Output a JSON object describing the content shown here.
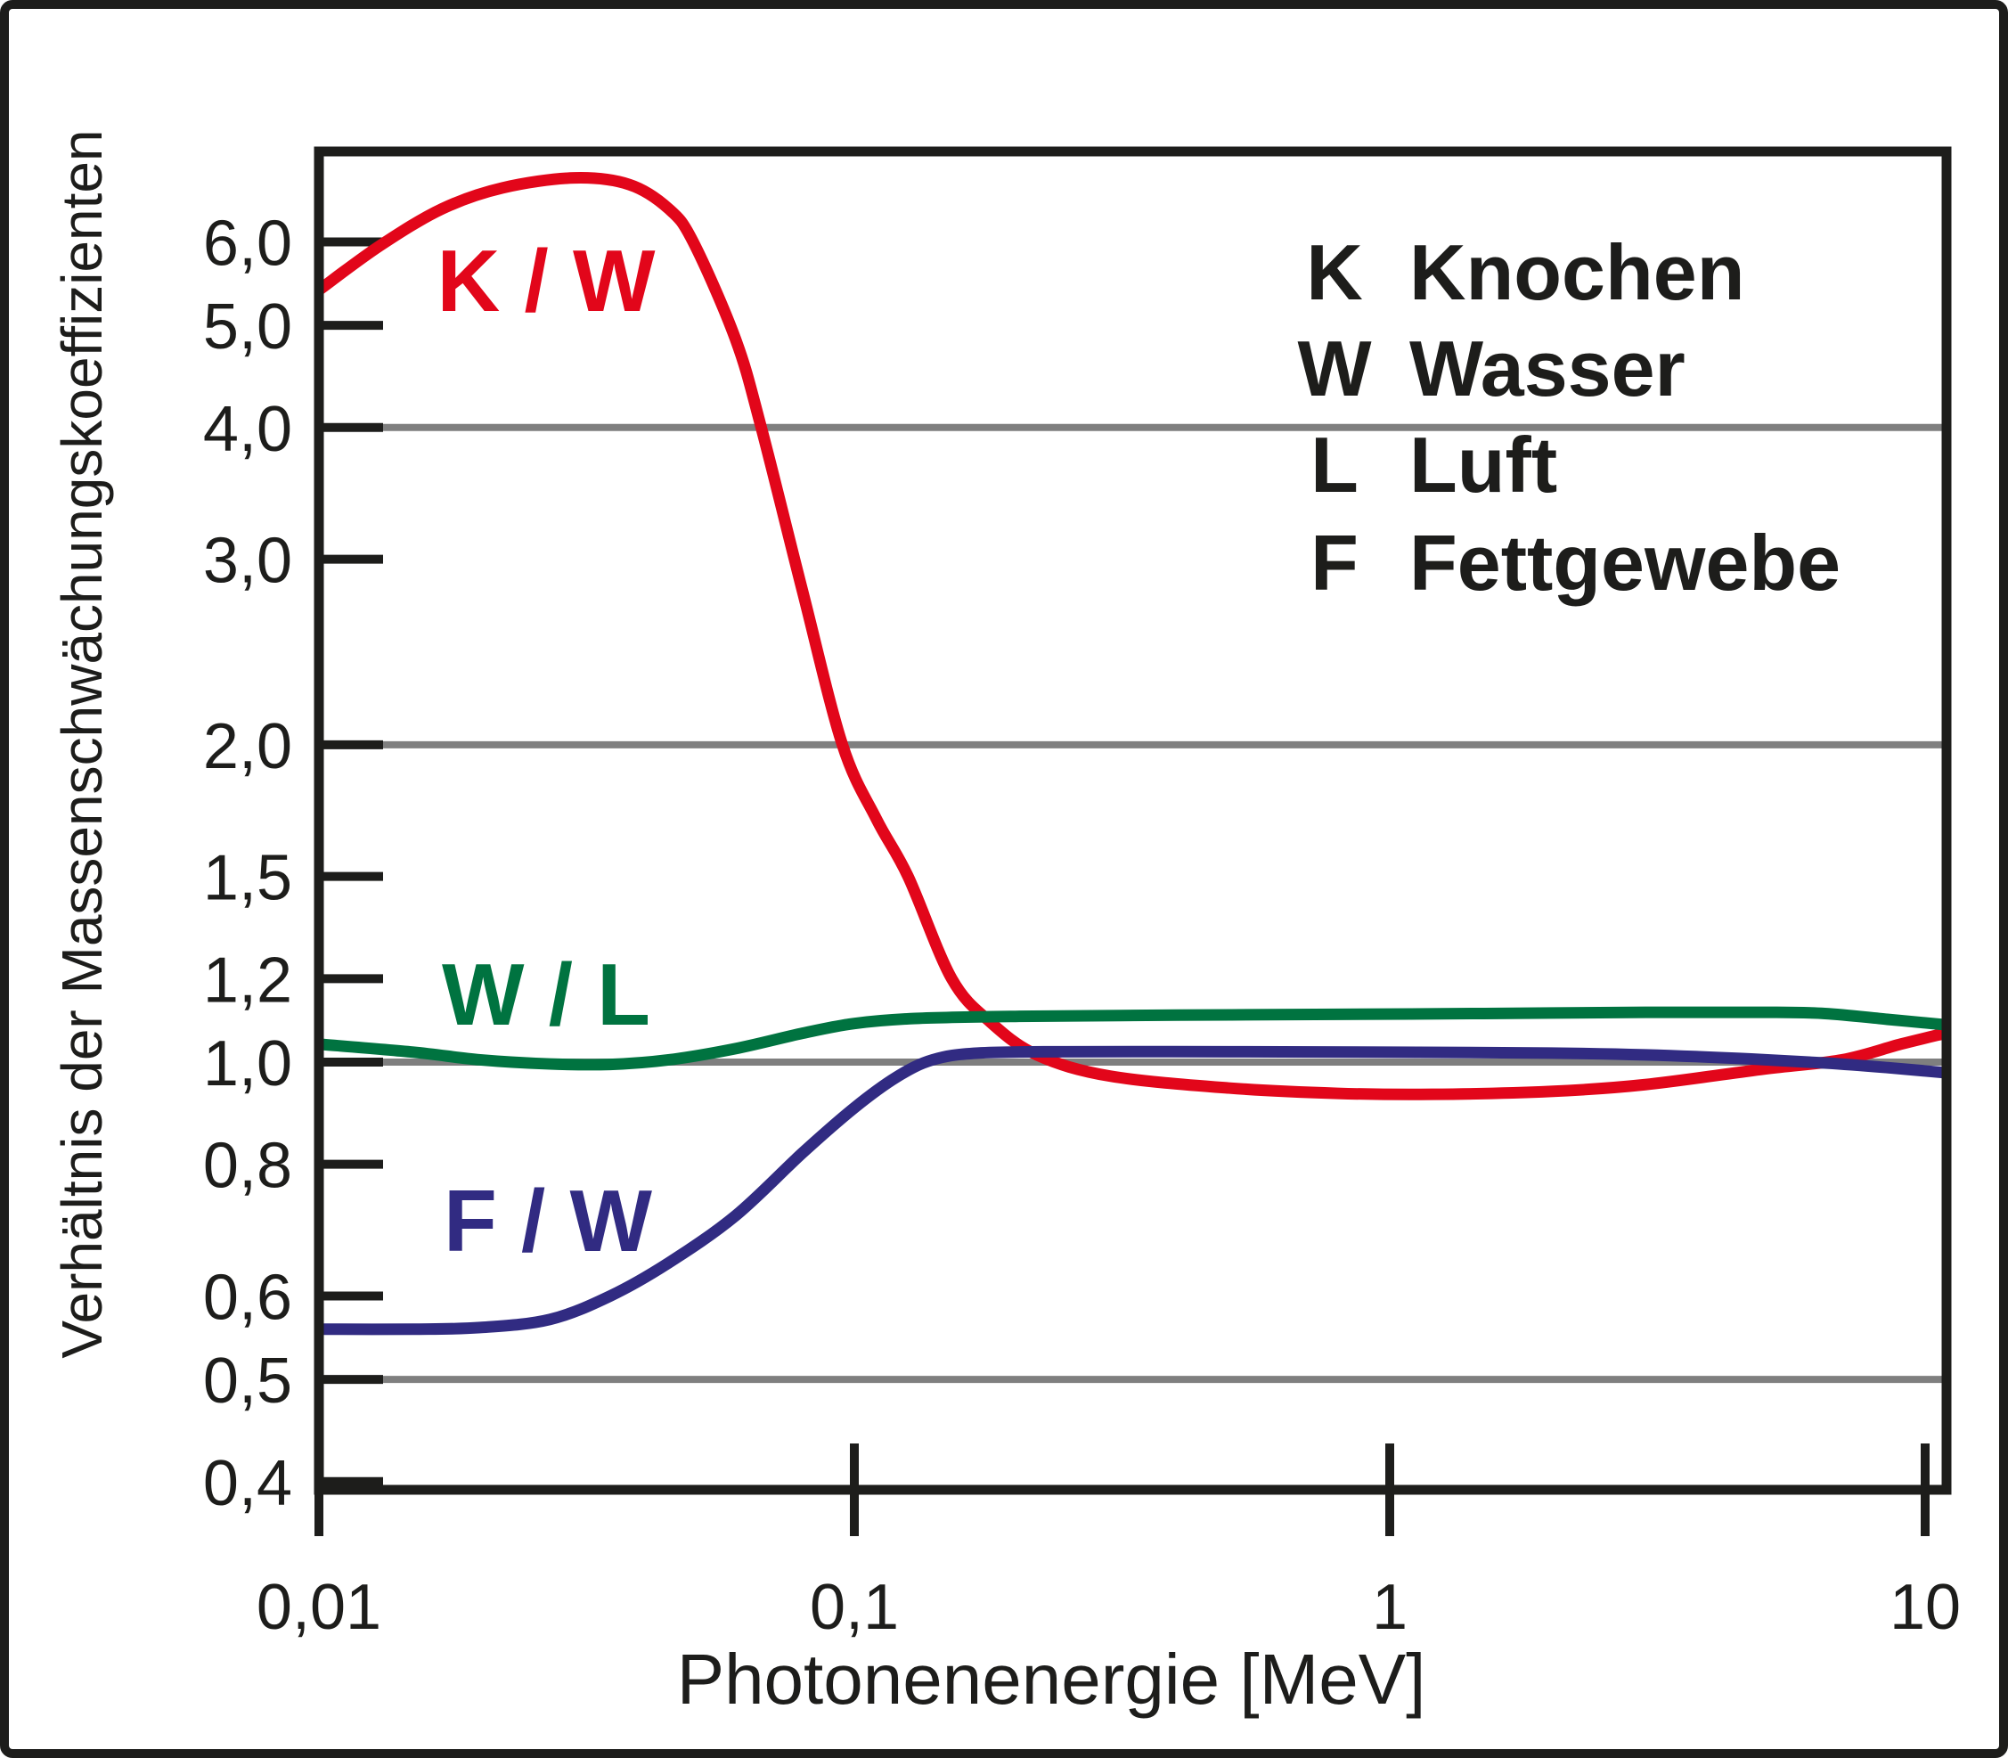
{
  "figure": {
    "background": "#ffffff",
    "border_color": "#1d1d1b"
  },
  "chart_data": {
    "type": "line",
    "title": "",
    "xlabel": "Photonenenergie [MeV]",
    "ylabel": "Verhältnis der Massenschwächungskoeffizienten",
    "x_scale": "log",
    "y_scale": "log",
    "xlim": [
      0.01,
      10.9
    ],
    "ylim": [
      0.4,
      7.3
    ],
    "grid": "horizontal-partial",
    "grid_color": "#7f7f7f",
    "axis_color": "#1d1d1b",
    "gridlines_y": [
      4.0,
      2.0,
      1.0,
      0.5
    ],
    "x_ticks": [
      {
        "value": 0.01,
        "label": "0,01"
      },
      {
        "value": 0.1,
        "label": "0,1"
      },
      {
        "value": 1,
        "label": "1"
      },
      {
        "value": 10,
        "label": "10"
      }
    ],
    "y_ticks": [
      {
        "value": 6.0,
        "label": "6,0"
      },
      {
        "value": 5.0,
        "label": "5,0"
      },
      {
        "value": 4.0,
        "label": "4,0"
      },
      {
        "value": 3.0,
        "label": "3,0"
      },
      {
        "value": 2.0,
        "label": "2,0"
      },
      {
        "value": 1.5,
        "label": "1,5"
      },
      {
        "value": 1.2,
        "label": "1,2"
      },
      {
        "value": 1.0,
        "label": "1,0"
      },
      {
        "value": 0.8,
        "label": "0,8"
      },
      {
        "value": 0.6,
        "label": "0,6"
      },
      {
        "value": 0.5,
        "label": "0,5"
      },
      {
        "value": 0.4,
        "label": "0,4"
      }
    ],
    "series": [
      {
        "name": "K / W",
        "label": "K / W",
        "color": "#e2061a",
        "points": [
          [
            0.01,
            5.4
          ],
          [
            0.013,
            5.95
          ],
          [
            0.017,
            6.45
          ],
          [
            0.022,
            6.75
          ],
          [
            0.03,
            6.9
          ],
          [
            0.038,
            6.8
          ],
          [
            0.045,
            6.45
          ],
          [
            0.05,
            6.0
          ],
          [
            0.06,
            4.85
          ],
          [
            0.067,
            4.0
          ],
          [
            0.08,
            2.8
          ],
          [
            0.095,
            2.0
          ],
          [
            0.11,
            1.7
          ],
          [
            0.126,
            1.5
          ],
          [
            0.152,
            1.2
          ],
          [
            0.18,
            1.09
          ],
          [
            0.22,
            1.015
          ],
          [
            0.3,
            0.97
          ],
          [
            0.5,
            0.945
          ],
          [
            0.8,
            0.934
          ],
          [
            1.2,
            0.932
          ],
          [
            2.0,
            0.938
          ],
          [
            3.0,
            0.952
          ],
          [
            5.0,
            0.985
          ],
          [
            7.0,
            1.005
          ],
          [
            9.0,
            1.04
          ],
          [
            10.9,
            1.065
          ]
        ]
      },
      {
        "name": "W / L",
        "label": "W / L",
        "color": "#007340",
        "points": [
          [
            0.01,
            1.04
          ],
          [
            0.015,
            1.022
          ],
          [
            0.02,
            1.005
          ],
          [
            0.027,
            0.996
          ],
          [
            0.035,
            0.995
          ],
          [
            0.045,
            1.005
          ],
          [
            0.06,
            1.03
          ],
          [
            0.08,
            1.065
          ],
          [
            0.1,
            1.088
          ],
          [
            0.13,
            1.1
          ],
          [
            0.2,
            1.105
          ],
          [
            0.4,
            1.108
          ],
          [
            0.8,
            1.11
          ],
          [
            1.5,
            1.112
          ],
          [
            3.0,
            1.115
          ],
          [
            5.0,
            1.115
          ],
          [
            6.5,
            1.112
          ],
          [
            8.5,
            1.098
          ],
          [
            10.9,
            1.085
          ]
        ]
      },
      {
        "name": "F / W",
        "label": "F / W",
        "color": "#312b82",
        "points": [
          [
            0.01,
            0.558
          ],
          [
            0.015,
            0.558
          ],
          [
            0.02,
            0.56
          ],
          [
            0.027,
            0.57
          ],
          [
            0.035,
            0.6
          ],
          [
            0.045,
            0.645
          ],
          [
            0.06,
            0.715
          ],
          [
            0.08,
            0.82
          ],
          [
            0.1,
            0.905
          ],
          [
            0.12,
            0.968
          ],
          [
            0.14,
            1.005
          ],
          [
            0.17,
            1.02
          ],
          [
            0.25,
            1.023
          ],
          [
            0.5,
            1.023
          ],
          [
            1.0,
            1.022
          ],
          [
            2.0,
            1.02
          ],
          [
            3.0,
            1.016
          ],
          [
            4.5,
            1.008
          ],
          [
            6.5,
            0.998
          ],
          [
            8.5,
            0.988
          ],
          [
            10.9,
            0.977
          ]
        ]
      }
    ],
    "legend": [
      {
        "symbol": "K",
        "name": "Knochen"
      },
      {
        "symbol": "W",
        "name": "Wasser"
      },
      {
        "symbol": "L",
        "name": "Luft"
      },
      {
        "symbol": "F",
        "name": "Fettgewebe"
      }
    ],
    "legend_position": "top-right"
  }
}
